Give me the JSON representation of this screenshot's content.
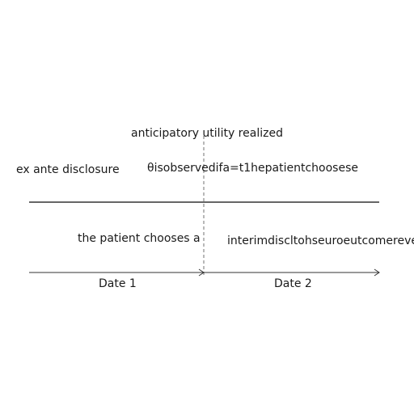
{
  "diagram": {
    "labels": {
      "top": "anticipatory utility realized",
      "ex_ante": "ex ante disclosure",
      "theta": "θisobservedifa=t1hepatientchoosese",
      "chooses": "the patient chooses a",
      "interim": "interimdiscltohseuroeutcomereveals",
      "date1": "Date 1",
      "date2": "Date 2"
    },
    "colors": {
      "line": "#333333",
      "dashed": "#888888",
      "text": "#1a1a1a"
    }
  }
}
